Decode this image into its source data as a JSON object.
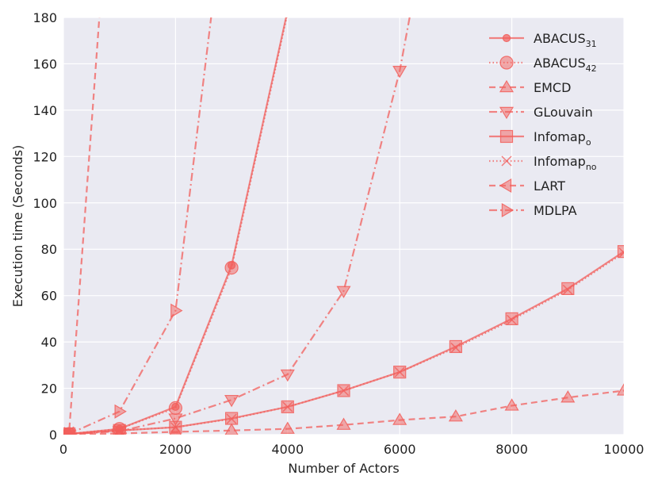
{
  "chart_data": {
    "type": "line",
    "title": "",
    "xlabel": "Number of Actors",
    "ylabel": "Execution time (Seconds)",
    "xlim": [
      0,
      10000
    ],
    "ylim": [
      0,
      180
    ],
    "x_ticks": [
      0,
      2000,
      4000,
      6000,
      8000,
      10000
    ],
    "y_ticks": [
      0,
      20,
      40,
      60,
      80,
      100,
      120,
      140,
      160,
      180
    ],
    "grid": true,
    "legend_position": "top-right",
    "colors": {
      "series": "#f25f5c",
      "background": "#eaeaf2",
      "grid": "#ffffff"
    },
    "series": [
      {
        "name": "ABACUS",
        "sub": "31",
        "marker": "small-circle",
        "dash": "solid",
        "x": [
          100,
          1000,
          2000,
          3000,
          4000
        ],
        "y": [
          0.3,
          2.5,
          12,
          73,
          183
        ]
      },
      {
        "name": "ABACUS",
        "sub": "42",
        "marker": "circle",
        "dash": "dotted",
        "x": [
          100,
          1000,
          2000,
          3000,
          4000
        ],
        "y": [
          0.3,
          2.5,
          11.5,
          72,
          182
        ]
      },
      {
        "name": "EMCD",
        "sub": "",
        "marker": "triangle-up",
        "dash": "dashed",
        "x": [
          100,
          1000,
          2000,
          3000,
          4000,
          5000,
          6000,
          7000,
          8000,
          9000,
          10000
        ],
        "y": [
          0.1,
          0.5,
          1.2,
          1.8,
          2.5,
          4.2,
          6.3,
          7.8,
          12.5,
          16,
          19
        ]
      },
      {
        "name": "GLouvain",
        "sub": "",
        "marker": "triangle-down",
        "dash": "dashdot",
        "x": [
          100,
          1000,
          2000,
          3000,
          4000,
          5000,
          6000,
          6200
        ],
        "y": [
          0.2,
          1.5,
          7,
          15,
          26,
          62,
          157,
          183
        ]
      },
      {
        "name": "Infomap",
        "sub": "o",
        "marker": "square",
        "dash": "solid",
        "x": [
          100,
          1000,
          2000,
          3000,
          4000,
          5000,
          6000,
          7000,
          8000,
          9000,
          10000
        ],
        "y": [
          0.3,
          1.8,
          3.2,
          7,
          12,
          19,
          27,
          38,
          50,
          63,
          79
        ]
      },
      {
        "name": "Infomap",
        "sub": "no",
        "marker": "x",
        "dash": "dotted",
        "x": [
          100,
          1000,
          2000,
          3000,
          4000,
          5000,
          6000,
          7000,
          8000,
          9000,
          10000
        ],
        "y": [
          0.3,
          1.8,
          3.2,
          6.8,
          12,
          19,
          27,
          37.5,
          49.5,
          62.5,
          78.5
        ]
      },
      {
        "name": "LART",
        "sub": "",
        "marker": "triangle-left",
        "dash": "dashed",
        "x": [
          0,
          100,
          650
        ],
        "y": [
          0,
          0.5,
          183
        ]
      },
      {
        "name": "MDLPA",
        "sub": "",
        "marker": "triangle-right",
        "dash": "dashdot",
        "x": [
          100,
          1000,
          2000,
          2650
        ],
        "y": [
          0.3,
          10,
          53.5,
          183
        ]
      }
    ]
  }
}
